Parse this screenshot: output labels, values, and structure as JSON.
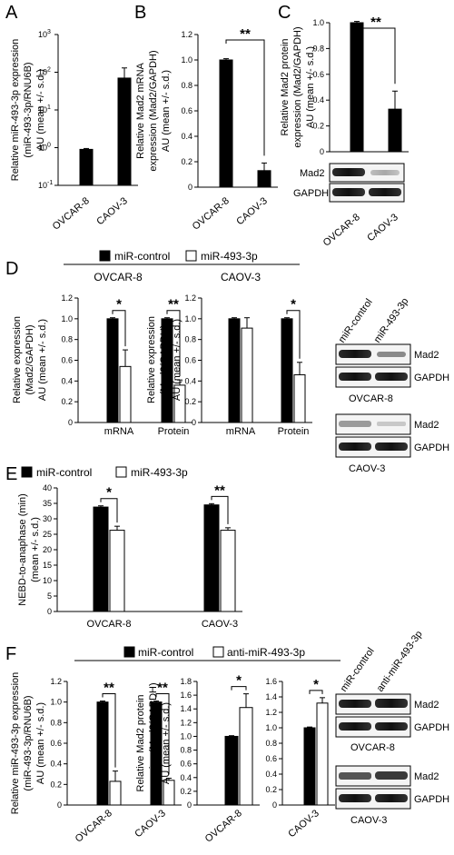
{
  "legend": {
    "control": "miR-control",
    "mimic": "miR-493-3p",
    "anti": "anti-miR-493-3p"
  },
  "colors": {
    "control": "#000000",
    "treated": "#ffffff"
  },
  "chart_data": [
    {
      "id": "A",
      "type": "bar",
      "scale": "log",
      "ylabel": [
        "Relative miR-493-3p expression",
        "(miR-493-3p/RNU6B)",
        "AU (mean +/- s.d.)"
      ],
      "ylim": [
        0.1,
        1000
      ],
      "ticks": [
        "10",
        "10",
        "10",
        "10",
        "10"
      ],
      "tick_exponents": [
        "-1",
        "0",
        "1",
        "2",
        "3"
      ],
      "categories": [
        "OVCAR-8",
        "CAOV-3"
      ],
      "series": [
        {
          "values": [
            0.9,
            70
          ],
          "errors": [
            0.05,
            60
          ]
        }
      ]
    },
    {
      "id": "B",
      "type": "bar",
      "ylabel": [
        "Relative Mad2 mRNA",
        "expression (Mad2/GAPDH)",
        "AU (mean +/- s.d.)"
      ],
      "ylim": [
        0,
        1.2
      ],
      "ticks": [
        "0",
        "0.2",
        "0.4",
        "0.6",
        "0.8",
        "1.0",
        "1.2"
      ],
      "categories": [
        "OVCAR-8",
        "CAOV-3"
      ],
      "series": [
        {
          "values": [
            1.0,
            0.13
          ],
          "errors": [
            0.01,
            0.06
          ]
        }
      ],
      "significance": [
        "**"
      ]
    },
    {
      "id": "C",
      "type": "bar",
      "ylabel": [
        "Relative Mad2 protein",
        "expression (Mad2/GAPDH)",
        "AU (mean +/- s.d.)"
      ],
      "ylim": [
        0,
        1.0
      ],
      "ticks": [
        "0",
        "0.2",
        "0.4",
        "0.6",
        "0.8",
        "1.0"
      ],
      "categories": [
        "OVCAR-8",
        "CAOV-3"
      ],
      "series": [
        {
          "values": [
            1.0,
            0.33
          ],
          "errors": [
            0.01,
            0.14
          ]
        }
      ],
      "significance": [
        "**"
      ]
    },
    {
      "id": "D",
      "type": "bar",
      "title": "OVCAR-8",
      "ylabel": [
        "Relative expression",
        "(Mad2/GAPDH)",
        "AU (mean +/- s.d.)"
      ],
      "ylim": [
        0,
        1.2
      ],
      "ticks": [
        "0",
        "0.2",
        "0.4",
        "0.6",
        "0.8",
        "1.0",
        "1.2"
      ],
      "categories": [
        "mRNA",
        "Protein"
      ],
      "series": [
        {
          "name": "miR-control",
          "values": [
            1.0,
            1.0
          ],
          "errors": [
            0.01,
            0.01
          ]
        },
        {
          "name": "miR-493-3p",
          "values": [
            0.54,
            0.36
          ],
          "errors": [
            0.16,
            0.05
          ]
        }
      ],
      "significance": [
        "*",
        "**"
      ]
    },
    {
      "id": "D2",
      "type": "bar",
      "title": "CAOV-3",
      "ylabel": [
        "Relative expression",
        "(Mad2/GAPDH)",
        "AU (mean +/- s.d.)"
      ],
      "ylim": [
        0,
        1.2
      ],
      "ticks": [
        "0",
        "0.2",
        "0.4",
        "0.6",
        "0.8",
        "1.0",
        "1.2"
      ],
      "categories": [
        "mRNA",
        "Protein"
      ],
      "series": [
        {
          "name": "miR-control",
          "values": [
            1.0,
            1.0
          ],
          "errors": [
            0.01,
            0.01
          ]
        },
        {
          "name": "miR-493-3p",
          "values": [
            0.91,
            0.46
          ],
          "errors": [
            0.1,
            0.12
          ]
        }
      ],
      "significance": [
        "",
        "*"
      ]
    },
    {
      "id": "E",
      "type": "bar",
      "ylabel": [
        "NEBD-to-anaphase (min)",
        "(mean +/- s.d.)"
      ],
      "ylim": [
        0,
        40
      ],
      "ticks": [
        "0",
        "5",
        "10",
        "15",
        "20",
        "25",
        "30",
        "35",
        "40"
      ],
      "categories": [
        "OVCAR-8",
        "CAOV-3"
      ],
      "series": [
        {
          "name": "miR-control",
          "values": [
            33.8,
            34.5
          ],
          "errors": [
            0.4,
            0.4
          ]
        },
        {
          "name": "miR-493-3p",
          "values": [
            26.3,
            26.3
          ],
          "errors": [
            1.3,
            0.8
          ]
        }
      ],
      "significance": [
        "*",
        "**"
      ]
    },
    {
      "id": "F",
      "type": "bar",
      "ylabel": [
        "Relative miR-493-3p expression",
        "(miR-493-3p/RNU6B)",
        "AU (mean +/- s.d.)"
      ],
      "ylim": [
        0,
        1.2
      ],
      "ticks": [
        "0",
        "0.2",
        "0.4",
        "0.6",
        "0.8",
        "1.0",
        "1.2"
      ],
      "categories": [
        "OVCAR-8",
        "CAOV-3"
      ],
      "series": [
        {
          "name": "miR-control",
          "values": [
            1.0,
            1.0
          ],
          "errors": [
            0.01,
            0.01
          ]
        },
        {
          "name": "anti-miR-493-3p",
          "values": [
            0.23,
            0.24
          ],
          "errors": [
            0.1,
            0.02
          ]
        }
      ],
      "significance": [
        "**",
        "**"
      ]
    },
    {
      "id": "F2",
      "type": "bar",
      "ylabel": [
        "Relative Mad2 protein",
        "expression (Mad2/GAPDH)",
        "AU (mean +/- s.d.)"
      ],
      "ylim": [
        0,
        1.8
      ],
      "ticks": [
        "0",
        "0.2",
        "0.4",
        "0.6",
        "0.8",
        "1.0",
        "1.2",
        "1.4",
        "1.6",
        "1.8"
      ],
      "categories": [
        "OVCAR-8"
      ],
      "series": [
        {
          "name": "miR-control",
          "values": [
            1.0
          ],
          "errors": [
            0.01
          ]
        },
        {
          "name": "anti-miR-493-3p",
          "values": [
            1.42
          ],
          "errors": [
            0.2
          ]
        }
      ],
      "significance": [
        "*"
      ]
    },
    {
      "id": "F3",
      "type": "bar",
      "ylim": [
        0,
        1.6
      ],
      "ticks": [
        "0",
        "0.2",
        "0.4",
        "0.6",
        "0.8",
        "1.0",
        "1.2",
        "1.4",
        "1.6"
      ],
      "categories": [
        "CAOV-3"
      ],
      "series": [
        {
          "name": "miR-control",
          "values": [
            1.0
          ],
          "errors": [
            0.01
          ]
        },
        {
          "name": "anti-miR-493-3p",
          "values": [
            1.32
          ],
          "errors": [
            0.07
          ]
        }
      ],
      "significance": [
        "*"
      ]
    }
  ],
  "panels": {
    "A": "A",
    "B": "B",
    "C": "C",
    "D": "D",
    "E": "E",
    "F": "F"
  },
  "blots": {
    "C": {
      "bands": [
        "Mad2",
        "GAPDH"
      ]
    },
    "D_ovcar": {
      "lanes": [
        "miR-control",
        "miR-493-3p"
      ],
      "bands": [
        "Mad2",
        "GAPDH"
      ],
      "cell": "OVCAR-8"
    },
    "D_caov": {
      "bands": [
        "Mad2",
        "GAPDH"
      ],
      "cell": "CAOV-3"
    },
    "F_ovcar": {
      "lanes": [
        "miR-control",
        "anti-miR-493-3p"
      ],
      "bands": [
        "Mad2",
        "GAPDH"
      ],
      "cell": "OVCAR-8"
    },
    "F_caov": {
      "bands": [
        "Mad2",
        "GAPDH"
      ],
      "cell": "CAOV-3"
    }
  }
}
